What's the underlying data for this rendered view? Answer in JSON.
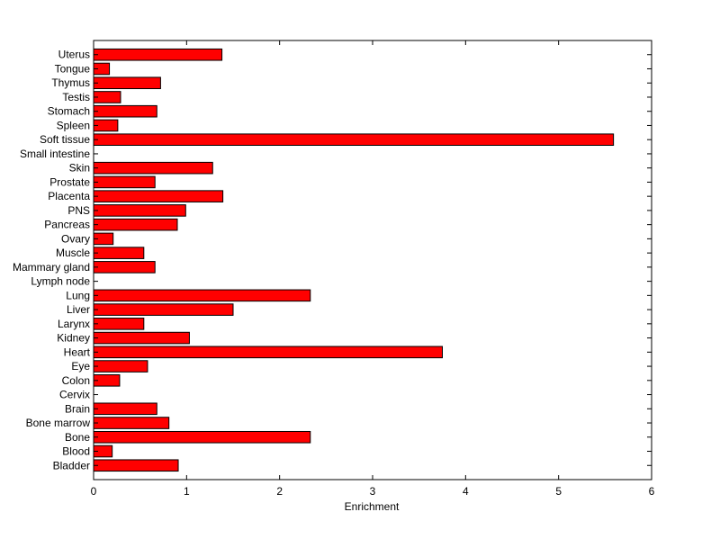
{
  "chart_data": {
    "type": "bar",
    "orientation": "horizontal",
    "xlabel": "Enrichment",
    "ylabel": "",
    "title": "",
    "xlim": [
      0,
      6
    ],
    "xticks": [
      0,
      1,
      2,
      3,
      4,
      5,
      6
    ],
    "grid": false,
    "bar_color": "#ff0000",
    "bar_edge_color": "#000000",
    "categories": [
      "Uterus",
      "Tongue",
      "Thymus",
      "Testis",
      "Stomach",
      "Spleen",
      "Soft tissue",
      "Small intestine",
      "Skin",
      "Prostate",
      "Placenta",
      "PNS",
      "Pancreas",
      "Ovary",
      "Muscle",
      "Mammary gland",
      "Lymph node",
      "Lung",
      "Liver",
      "Larynx",
      "Kidney",
      "Heart",
      "Eye",
      "Colon",
      "Cervix",
      "Brain",
      "Bone marrow",
      "Bone",
      "Blood",
      "Bladder"
    ],
    "values": [
      1.38,
      0.17,
      0.72,
      0.29,
      0.68,
      0.26,
      5.59,
      0,
      1.28,
      0.66,
      1.39,
      0.99,
      0.9,
      0.21,
      0.54,
      0.66,
      0,
      2.33,
      1.5,
      0.54,
      1.03,
      3.75,
      0.58,
      0.28,
      0,
      0.68,
      0.81,
      2.33,
      0.2,
      0.91
    ]
  }
}
